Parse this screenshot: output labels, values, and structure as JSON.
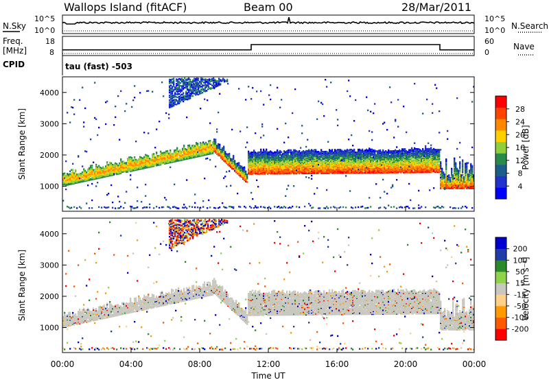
{
  "header": {
    "station": "Wallops Island (fitACF)",
    "beam": "Beam 00",
    "date": "28/Mar/2011"
  },
  "noise_panel": {
    "left_label": "N.Sky",
    "right_label": "N.Search",
    "left_ticks": [
      "10^5",
      "10^0"
    ],
    "right_ticks": [
      "10^5",
      "10^0"
    ]
  },
  "freq_panel": {
    "left_label_1": "Freq.",
    "left_label_2": "[MHz]",
    "left_ticks": [
      "18",
      "8"
    ],
    "right_label": "Nave",
    "right_ticks": [
      "60",
      "0"
    ],
    "cpid_label": "CPID",
    "cpid_text": "tau (fast) -503",
    "freq_series_mhz": {
      "t": [
        0,
        11,
        11,
        22,
        22,
        24
      ],
      "f": [
        10.4,
        10.4,
        13.9,
        13.9,
        10.4,
        10.4
      ]
    }
  },
  "x_axis": {
    "title": "Time UT",
    "ticks": [
      "00:00",
      "04:00",
      "08:00",
      "12:00",
      "16:00",
      "20:00",
      "00:00"
    ]
  },
  "colors": {
    "power": [
      "#0000ff",
      "#2233cc",
      "#1b5e8c",
      "#2a8a4a",
      "#8fcf3c",
      "#ffd000",
      "#ff8800",
      "#ff4400",
      "#ff0000"
    ],
    "velocity": [
      "#ff0000",
      "#ff5a00",
      "#ff9a00",
      "#ffd08a",
      "#c8c8c0",
      "#8fd34a",
      "#2a8a2a",
      "#1f3ca8",
      "#0000d0"
    ]
  },
  "chart_data": [
    {
      "type": "heatmap",
      "name": "power",
      "ylabel": "Slant Range [km]",
      "yticks": [
        "1000",
        "2000",
        "3000",
        "4000"
      ],
      "ylim": [
        200,
        4500
      ],
      "xlim": [
        0,
        24
      ],
      "colorbar_label": "Power [dB]",
      "colorbar_ticks": [
        "4",
        "8",
        "12",
        "16",
        "20",
        "24",
        "28"
      ],
      "clim": [
        0,
        32
      ]
    },
    {
      "type": "heatmap",
      "name": "velocity",
      "ylabel": "Slant Range [km]",
      "yticks": [
        "1000",
        "2000",
        "3000",
        "4000"
      ],
      "ylim": [
        200,
        4500
      ],
      "xlim": [
        0,
        24
      ],
      "colorbar_label": "Velocity [m s⁻¹]",
      "colorbar_ticks": [
        "-200",
        "-100",
        "-50",
        "-15",
        "15",
        "50",
        "100",
        "200"
      ],
      "clim": [
        -250,
        250
      ]
    }
  ]
}
